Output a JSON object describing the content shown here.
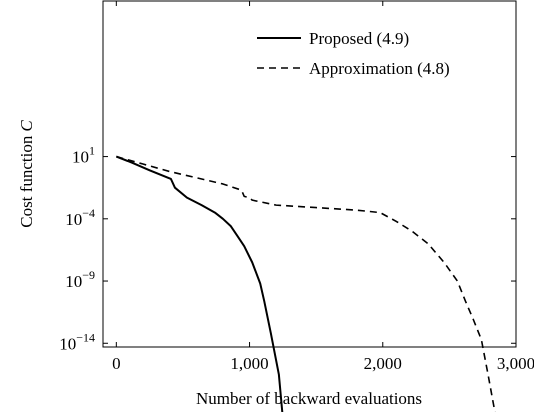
{
  "chart_data": {
    "type": "line",
    "xlabel": "Number of backward evaluations",
    "ylabel": "Cost function",
    "ylabel_symbol": "C",
    "xlim": [
      -100,
      3000
    ],
    "ylog_lim": [
      -14.3,
      13.5
    ],
    "x_ticks": [
      0,
      1000,
      2000,
      3000
    ],
    "x_tick_labels": [
      "0",
      "1,000",
      "2,000",
      "3,000"
    ],
    "y_ticks_exp": [
      1,
      -4,
      -9,
      -14
    ],
    "y_tick_base": "10",
    "y_tick_exponents": [
      "1",
      "−4",
      "−9",
      "−14"
    ],
    "grid": false,
    "legend_position": "top-right",
    "series": [
      {
        "name": "Proposed (4.9)",
        "style": "solid",
        "color": "#000000",
        "points": [
          [
            0,
            1.0
          ],
          [
            120,
            0.5
          ],
          [
            250,
            -0.1
          ],
          [
            410,
            -0.8
          ],
          [
            440,
            -1.5
          ],
          [
            530,
            -2.3
          ],
          [
            640,
            -2.9
          ],
          [
            740,
            -3.5
          ],
          [
            800,
            -4.0
          ],
          [
            860,
            -4.6
          ],
          [
            910,
            -5.4
          ],
          [
            960,
            -6.2
          ],
          [
            1020,
            -7.5
          ],
          [
            1080,
            -9.2
          ],
          [
            1110,
            -10.6
          ],
          [
            1160,
            -13.2
          ],
          [
            1220,
            -16.5
          ],
          [
            1248,
            -19.8
          ]
        ]
      },
      {
        "name": "Approximation (4.8)",
        "style": "dashed",
        "color": "#000000",
        "points": [
          [
            0,
            1.0
          ],
          [
            200,
            0.4
          ],
          [
            400,
            -0.2
          ],
          [
            600,
            -0.7
          ],
          [
            800,
            -1.2
          ],
          [
            940,
            -1.7
          ],
          [
            960,
            -2.2
          ],
          [
            1000,
            -2.3
          ],
          [
            1020,
            -2.5
          ],
          [
            1200,
            -2.9
          ],
          [
            1500,
            -3.1
          ],
          [
            1800,
            -3.3
          ],
          [
            1980,
            -3.5
          ],
          [
            2100,
            -4.2
          ],
          [
            2220,
            -5.0
          ],
          [
            2340,
            -6.0
          ],
          [
            2460,
            -7.5
          ],
          [
            2560,
            -9.0
          ],
          [
            2620,
            -10.6
          ],
          [
            2680,
            -12.1
          ],
          [
            2740,
            -13.7
          ],
          [
            2790,
            -16.5
          ],
          [
            2848,
            -19.9
          ]
        ]
      }
    ]
  }
}
